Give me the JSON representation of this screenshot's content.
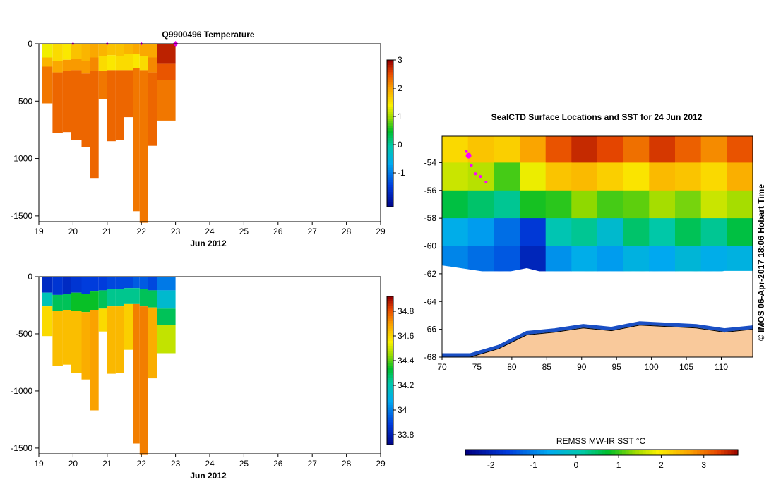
{
  "chart_data": [
    {
      "type": "heatmap",
      "title": "Q9900496  Temperature",
      "xlabel": "Jun 2012",
      "ylabel": "",
      "x_ticks": [
        19,
        20,
        21,
        22,
        23,
        24,
        25,
        26,
        27,
        28,
        29
      ],
      "xlim": [
        19,
        29
      ],
      "y_ticks": [
        0,
        -500,
        -1000,
        -1500
      ],
      "ylim": [
        -1550,
        0
      ],
      "colorbar_ticks": [
        -1,
        0,
        1,
        2,
        3
      ],
      "colorbar_range": [
        -2.2,
        3
      ],
      "marker_days": [
        20,
        21,
        22,
        23
      ],
      "profiles": [
        {
          "x0": 19.1,
          "x1": 19.4,
          "max_depth": 520,
          "layers": [
            [
              0,
              120,
              1.4
            ],
            [
              120,
              200,
              1.9
            ],
            [
              200,
              520,
              2.3
            ]
          ]
        },
        {
          "x0": 19.4,
          "x1": 19.7,
          "max_depth": 780,
          "layers": [
            [
              0,
              150,
              1.6
            ],
            [
              150,
              250,
              2.0
            ],
            [
              250,
              780,
              2.4
            ]
          ]
        },
        {
          "x0": 19.7,
          "x1": 19.95,
          "max_depth": 770,
          "layers": [
            [
              0,
              140,
              1.5
            ],
            [
              140,
              240,
              2.1
            ],
            [
              240,
              770,
              2.4
            ]
          ]
        },
        {
          "x0": 19.95,
          "x1": 20.25,
          "max_depth": 840,
          "layers": [
            [
              0,
              130,
              1.8
            ],
            [
              130,
              230,
              2.1
            ],
            [
              230,
              840,
              2.4
            ]
          ]
        },
        {
          "x0": 20.25,
          "x1": 20.5,
          "max_depth": 900,
          "layers": [
            [
              0,
              150,
              1.9
            ],
            [
              150,
              260,
              2.1
            ],
            [
              260,
              900,
              2.4
            ]
          ]
        },
        {
          "x0": 20.5,
          "x1": 20.75,
          "max_depth": 1170,
          "layers": [
            [
              0,
              120,
              2.0
            ],
            [
              120,
              240,
              2.2
            ],
            [
              240,
              1170,
              2.4
            ]
          ]
        },
        {
          "x0": 20.75,
          "x1": 21.0,
          "max_depth": 480,
          "layers": [
            [
              0,
              110,
              1.9
            ],
            [
              110,
              240,
              1.6
            ],
            [
              240,
              480,
              2.3
            ]
          ]
        },
        {
          "x0": 21.0,
          "x1": 21.25,
          "max_depth": 850,
          "layers": [
            [
              0,
              100,
              1.8
            ],
            [
              100,
              230,
              1.5
            ],
            [
              230,
              850,
              2.4
            ]
          ]
        },
        {
          "x0": 21.25,
          "x1": 21.5,
          "max_depth": 840,
          "layers": [
            [
              0,
              110,
              1.8
            ],
            [
              110,
              230,
              1.6
            ],
            [
              230,
              840,
              2.4
            ]
          ]
        },
        {
          "x0": 21.5,
          "x1": 21.75,
          "max_depth": 640,
          "layers": [
            [
              0,
              90,
              1.9
            ],
            [
              90,
              230,
              1.6
            ],
            [
              230,
              640,
              2.4
            ]
          ]
        },
        {
          "x0": 21.75,
          "x1": 21.95,
          "max_depth": 1460,
          "layers": [
            [
              0,
              90,
              2.0
            ],
            [
              90,
              210,
              1.5
            ],
            [
              210,
              1460,
              2.3
            ]
          ]
        },
        {
          "x0": 21.95,
          "x1": 22.2,
          "max_depth": 1560,
          "layers": [
            [
              0,
              110,
              2.0
            ],
            [
              110,
              230,
              1.6
            ],
            [
              230,
              1560,
              2.3
            ]
          ]
        },
        {
          "x0": 22.2,
          "x1": 22.45,
          "max_depth": 890,
          "layers": [
            [
              0,
              120,
              2.0
            ],
            [
              120,
              250,
              2.2
            ],
            [
              250,
              890,
              2.4
            ]
          ]
        },
        {
          "x0": 22.45,
          "x1": 23.0,
          "max_depth": 670,
          "layers": [
            [
              0,
              170,
              2.8
            ],
            [
              170,
              320,
              2.5
            ],
            [
              320,
              670,
              2.3
            ]
          ]
        }
      ]
    },
    {
      "type": "heatmap",
      "title": "",
      "xlabel": "Jun 2012",
      "ylabel": "",
      "x_ticks": [
        19,
        20,
        21,
        22,
        23,
        24,
        25,
        26,
        27,
        28,
        29
      ],
      "xlim": [
        19,
        29
      ],
      "y_ticks": [
        0,
        -500,
        -1000,
        -1500
      ],
      "ylim": [
        -1550,
        0
      ],
      "colorbar_ticks": [
        33.8,
        34,
        34.2,
        34.4,
        34.6,
        34.8
      ],
      "colorbar_labels": [
        "33.8",
        "34",
        "34.2",
        "34.4",
        "34.6",
        "34.8"
      ],
      "colorbar_range": [
        33.72,
        34.92
      ],
      "profiles": [
        {
          "x0": 19.1,
          "x1": 19.4,
          "max_depth": 520,
          "layers": [
            [
              0,
              140,
              33.85
            ],
            [
              140,
              260,
              34.2
            ],
            [
              260,
              520,
              34.6
            ]
          ]
        },
        {
          "x0": 19.4,
          "x1": 19.7,
          "max_depth": 780,
          "layers": [
            [
              0,
              160,
              33.88
            ],
            [
              160,
              300,
              34.3
            ],
            [
              300,
              780,
              34.65
            ]
          ]
        },
        {
          "x0": 19.7,
          "x1": 19.95,
          "max_depth": 770,
          "layers": [
            [
              0,
              150,
              33.85
            ],
            [
              150,
              290,
              34.3
            ],
            [
              290,
              770,
              34.65
            ]
          ]
        },
        {
          "x0": 19.95,
          "x1": 20.25,
          "max_depth": 840,
          "layers": [
            [
              0,
              140,
              33.88
            ],
            [
              140,
              300,
              34.35
            ],
            [
              300,
              840,
              34.65
            ]
          ]
        },
        {
          "x0": 20.25,
          "x1": 20.5,
          "max_depth": 900,
          "layers": [
            [
              0,
              150,
              33.9
            ],
            [
              150,
              310,
              34.35
            ],
            [
              310,
              900,
              34.68
            ]
          ]
        },
        {
          "x0": 20.5,
          "x1": 20.75,
          "max_depth": 1170,
          "layers": [
            [
              0,
              130,
              33.9
            ],
            [
              130,
              290,
              34.35
            ],
            [
              290,
              1170,
              34.7
            ]
          ]
        },
        {
          "x0": 20.75,
          "x1": 21.0,
          "max_depth": 480,
          "layers": [
            [
              0,
              120,
              33.9
            ],
            [
              120,
              280,
              34.3
            ],
            [
              280,
              480,
              34.6
            ]
          ]
        },
        {
          "x0": 21.0,
          "x1": 21.25,
          "max_depth": 850,
          "layers": [
            [
              0,
              110,
              33.92
            ],
            [
              110,
              260,
              34.25
            ],
            [
              260,
              850,
              34.66
            ]
          ]
        },
        {
          "x0": 21.25,
          "x1": 21.5,
          "max_depth": 840,
          "layers": [
            [
              0,
              110,
              33.92
            ],
            [
              110,
              260,
              34.25
            ],
            [
              260,
              840,
              34.66
            ]
          ]
        },
        {
          "x0": 21.5,
          "x1": 21.75,
          "max_depth": 640,
          "layers": [
            [
              0,
              100,
              33.92
            ],
            [
              100,
              240,
              34.25
            ],
            [
              240,
              640,
              34.62
            ]
          ]
        },
        {
          "x0": 21.75,
          "x1": 21.95,
          "max_depth": 1460,
          "layers": [
            [
              0,
              100,
              33.95
            ],
            [
              100,
              240,
              34.25
            ],
            [
              240,
              1460,
              34.75
            ]
          ]
        },
        {
          "x0": 21.95,
          "x1": 22.2,
          "max_depth": 1560,
          "layers": [
            [
              0,
              110,
              33.95
            ],
            [
              110,
              260,
              34.3
            ],
            [
              260,
              1560,
              34.75
            ]
          ]
        },
        {
          "x0": 22.2,
          "x1": 22.45,
          "max_depth": 890,
          "layers": [
            [
              0,
              120,
              33.92
            ],
            [
              120,
              270,
              34.3
            ],
            [
              270,
              890,
              34.68
            ]
          ]
        },
        {
          "x0": 22.45,
          "x1": 23.0,
          "max_depth": 670,
          "layers": [
            [
              0,
              120,
              34.0
            ],
            [
              120,
              280,
              34.15
            ],
            [
              280,
              420,
              34.3
            ],
            [
              420,
              670,
              34.5
            ]
          ]
        }
      ]
    },
    {
      "type": "heatmap",
      "title": "SealCTD Surface Locations and SST for 24 Jun 2012",
      "xlabel": "",
      "ylabel": "",
      "x_ticks": [
        70,
        75,
        80,
        85,
        90,
        95,
        100,
        105,
        110
      ],
      "xlim": [
        70,
        114.5
      ],
      "y_ticks": [
        -54,
        -56,
        -58,
        -60,
        -62,
        -64,
        -66,
        -68
      ],
      "ylim": [
        -68,
        -52.1
      ],
      "side_label": "© IMOS 06-Apr-2017 18:06 Hobart Time",
      "track_lon": [
        73.5,
        73.8,
        74.2,
        74.8,
        75.5,
        76.3
      ],
      "track_lat": [
        -53.2,
        -53.5,
        -54.2,
        -54.8,
        -55.0,
        -55.4
      ],
      "bands": [
        {
          "lat_from": -52.1,
          "lat_to": -54.0,
          "sst": [
            2.1,
            2.3,
            2.2,
            2.6,
            3.2,
            3.5,
            3.3,
            3.0,
            3.4,
            3.1,
            2.8,
            3.2
          ]
        },
        {
          "lat_from": -54.0,
          "lat_to": -56.0,
          "sst": [
            1.6,
            1.5,
            1.0,
            1.8,
            2.3,
            2.4,
            2.2,
            2.0,
            2.4,
            2.3,
            2.1,
            2.5
          ]
        },
        {
          "lat_from": -56.0,
          "lat_to": -58.0,
          "sst": [
            0.6,
            0.4,
            0.2,
            0.8,
            0.9,
            1.3,
            1.0,
            1.1,
            1.4,
            1.2,
            1.6,
            1.4
          ]
        },
        {
          "lat_from": -58.0,
          "lat_to": -60.0,
          "sst": [
            -0.6,
            -0.8,
            -1.2,
            -1.7,
            0.0,
            0.2,
            -0.3,
            0.4,
            0.1,
            0.5,
            0.2,
            0.6
          ]
        },
        {
          "lat_from": -60.0,
          "lat_to": -61.8,
          "sst": [
            -1.0,
            -1.2,
            -1.4,
            -2.0,
            -0.9,
            -0.6,
            -0.8,
            -0.5,
            -0.7,
            -0.4,
            -0.6,
            -0.5
          ]
        }
      ],
      "ice_edge_lat": [
        -61.4,
        -61.7,
        -62.0,
        -61.6,
        -62.1,
        -61.9,
        -62.3,
        -62.0,
        -62.6,
        -62.2,
        -61.8,
        -61.8
      ],
      "land_edge_lat": [
        -68.0,
        -68.0,
        -67.4,
        -66.4,
        -66.2,
        -65.9,
        -66.1,
        -65.7,
        -65.8,
        -65.9,
        -66.2,
        -66.0
      ],
      "colorbar_title": "REMSS MW-IR SST °C",
      "colorbar_ticks": [
        -2,
        -1,
        0,
        1,
        2,
        3
      ],
      "colorbar_range": [
        -2.6,
        3.8
      ]
    }
  ]
}
